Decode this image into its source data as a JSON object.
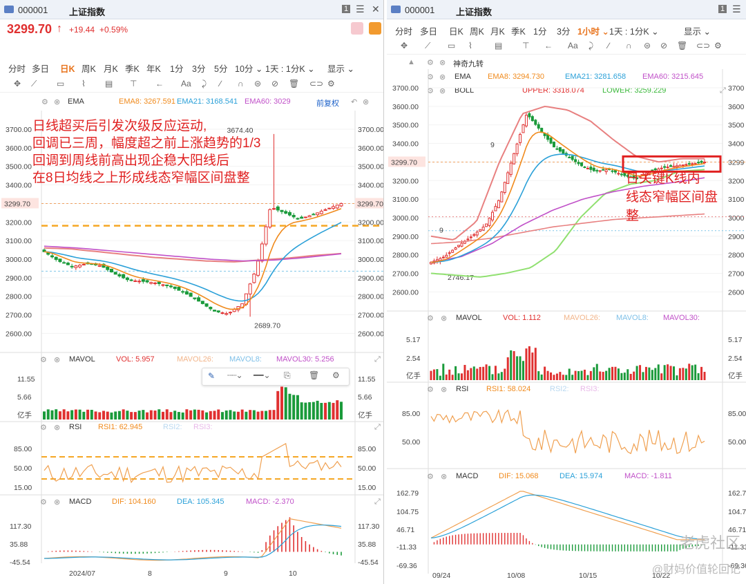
{
  "left": {
    "title": {
      "code": "000001",
      "name": "上证指数",
      "badge": "1",
      "menu": "☰",
      "close": "✕"
    },
    "price": {
      "last": "3299.70",
      "arrow": "↑",
      "change": "+19.44",
      "pct": "+0.59%"
    },
    "periods": [
      "分时",
      "多日",
      "日K",
      "周K",
      "月K",
      "季K",
      "年K",
      "1分",
      "3分",
      "5分",
      "10分 ⌄",
      "1天 : 1分K ⌄",
      "显示 ⌄"
    ],
    "active_period": "日K",
    "ema": {
      "name": "EMA",
      "ema8": "EMA8: 3267.591",
      "ema21": "EMA21: 3168.541",
      "ema60": "EMA60: 3029",
      "adj": "前复权"
    },
    "price_axis": [
      "3700.00",
      "3600.00",
      "3500.00",
      "3400.00",
      "3300.00",
      "3200.00",
      "3100.00",
      "3000.00",
      "2900.00",
      "2800.00",
      "2700.00",
      "2600.00"
    ],
    "current_label": "3299.70",
    "high_label": "3674.40",
    "low_label": "2689.70",
    "annotation": [
      "日线超买后引发次级反应运动,",
      "回调已三周，幅度超之前上涨趋势的1/3",
      "回调到周线前高出现企稳大阳线后",
      "在8日均线之上形成线态窄幅区间盘整"
    ],
    "mavol": {
      "name": "MAVOL",
      "vol": "VOL: 5.957",
      "m26": "MAVOL26:",
      "m8": "MAVOL8:",
      "m30": "MAVOL30: 5.256",
      "axis": [
        "11.55",
        "5.66",
        "亿手"
      ]
    },
    "rsi": {
      "name": "RSI",
      "r1": "RSI1: 62.945",
      "r2": "RSI2:",
      "r3": "RSI3:",
      "axis": [
        "85.00",
        "50.00",
        "15.00"
      ]
    },
    "macd": {
      "name": "MACD",
      "dif": "DIF: 104.160",
      "dea": "DEA: 105.345",
      "macd": "MACD: -2.370",
      "axis": [
        "117.30",
        "35.88",
        "-45.54"
      ]
    },
    "dates": [
      "2024/07",
      "8",
      "9",
      "10"
    ],
    "colors": {
      "up": "#e03030",
      "down": "#1a9a3a",
      "ema8": "#f08a1c",
      "ema21": "#2aa0d8",
      "ema60": "#c050c8",
      "ema_long": "#e88080"
    }
  },
  "right": {
    "title": {
      "code": "000001",
      "name": "上证指数",
      "badge": "1",
      "menu": "☰",
      "close": "✕"
    },
    "periods": [
      "分时",
      "多日",
      "日K",
      "周K",
      "月K",
      "季K",
      "1分",
      "3分",
      "1小时 ⌄",
      "1天 : 1分K ⌄",
      "显示 ⌄"
    ],
    "active_period": "1小时 ⌄",
    "nine": "神奇九转",
    "ema": {
      "name": "EMA",
      "ema8": "EMA8: 3294.730",
      "ema21": "EMA21: 3281.658",
      "ema60": "EMA60: 3215.645"
    },
    "boll": {
      "name": "BOLL",
      "upper": "UPPER: 3318.074",
      "lower": "LOWER: 3259.229"
    },
    "price_axis": [
      "3700.00",
      "3600.00",
      "3500.00",
      "3400.00",
      "3300.00",
      "3200.00",
      "3100.00",
      "3000.00",
      "2900.00",
      "2800.00",
      "2700.00",
      "2600.00"
    ],
    "price_axis_right": [
      "3700",
      "3600",
      "3500",
      "3400",
      "3299",
      "3200",
      "3100",
      "3000",
      "2900",
      "2800",
      "2700",
      "2600"
    ],
    "current_label": "3299.70",
    "low_label": "2746.17",
    "nine_marks": [
      "9",
      "9"
    ],
    "annotation": [
      "日关键K线内",
      "线态窄幅区间盘",
      "整"
    ],
    "mavol": {
      "name": "MAVOL",
      "vol": "VOL: 1.112",
      "m26": "MAVOL26:",
      "m8": "MAVOL8:",
      "m30": "MAVOL30:",
      "axis": [
        "5.17",
        "2.54",
        "亿手"
      ]
    },
    "rsi": {
      "name": "RSI",
      "r1": "RSI1: 58.024",
      "r2": "RSI2:",
      "r3": "RSI3:",
      "axis": [
        "85.00",
        "50.00"
      ]
    },
    "macd": {
      "name": "MACD",
      "dif": "DIF: 15.068",
      "dea": "DEA: 15.974",
      "macd": "MACD: -1.811",
      "axis": [
        "162.79",
        "104.75",
        "46.71",
        "-11.33",
        "-69.36"
      ]
    },
    "dates": [
      "09/24",
      "10/08",
      "10/15",
      "10/22"
    ],
    "watermark1": "老虎社区",
    "watermark2": "@财妈价值轮回记"
  },
  "chart_data": [
    {
      "type": "candlestick",
      "title": "上证指数 日K",
      "x_range": [
        "2024/07",
        "2024/10"
      ],
      "ylim": [
        2600,
        3700
      ],
      "points": {
        "high": 3674.4,
        "low": 2689.7,
        "last": 3299.7
      },
      "reference_lines": [
        3299.7,
        3180,
        2935
      ],
      "series": [
        {
          "name": "EMA8",
          "last": 3267.591
        },
        {
          "name": "EMA21",
          "last": 3168.541
        },
        {
          "name": "EMA60",
          "last": 3029
        }
      ],
      "sub": {
        "MAVOL": {
          "VOL": 5.957,
          "MAVOL30": 5.256
        },
        "RSI": {
          "RSI1": 62.945
        },
        "MACD": {
          "DIF": 104.16,
          "DEA": 105.345,
          "MACD": -2.37
        }
      }
    },
    {
      "type": "candlestick",
      "title": "上证指数 1小时",
      "x_ticks": [
        "09/24",
        "10/08",
        "10/15",
        "10/22"
      ],
      "ylim": [
        2600,
        3700
      ],
      "points": {
        "low": 2746.17,
        "last": 3299.7
      },
      "series": [
        {
          "name": "EMA8",
          "last": 3294.73
        },
        {
          "name": "EMA21",
          "last": 3281.658
        },
        {
          "name": "EMA60",
          "last": 3215.645
        },
        {
          "name": "UPPER",
          "last": 3318.074
        },
        {
          "name": "LOWER",
          "last": 3259.229
        }
      ],
      "sub": {
        "MAVOL": {
          "VOL": 1.112
        },
        "RSI": {
          "RSI1": 58.024
        },
        "MACD": {
          "DIF": 15.068,
          "DEA": 15.974,
          "MACD": -1.811
        }
      }
    }
  ]
}
